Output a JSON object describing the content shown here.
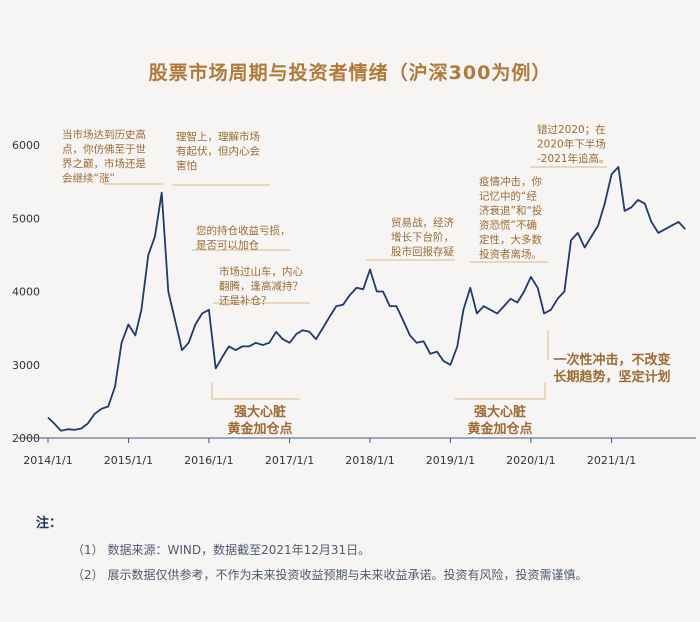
{
  "title": "股票市场周期与投资者情绪（沪深300为例）",
  "chart_data": {
    "type": "line",
    "series": [
      {
        "x": [
          "2014/1/1",
          "2014/2/1",
          "2014/3/1",
          "2014/4/1",
          "2014/5/1",
          "2014/6/1",
          "2014/7/1",
          "2014/8/1",
          "2014/9/1",
          "2014/10/1",
          "2014/11/1",
          "2014/12/1",
          "2015/1/1",
          "2015/2/1",
          "2015/3/1",
          "2015/4/1",
          "2015/5/1",
          "2015/6/1",
          "2015/7/1",
          "2015/8/1",
          "2015/9/1",
          "2015/10/1",
          "2015/11/1",
          "2015/12/1",
          "2016/1/1",
          "2016/2/1",
          "2016/3/1",
          "2016/4/1",
          "2016/5/1",
          "2016/6/1",
          "2016/7/1",
          "2016/8/1",
          "2016/9/1",
          "2016/10/1",
          "2016/11/1",
          "2016/12/1",
          "2017/1/1",
          "2017/2/1",
          "2017/3/1",
          "2017/4/1",
          "2017/5/1",
          "2017/6/1",
          "2017/7/1",
          "2017/8/1",
          "2017/9/1",
          "2017/10/1",
          "2017/11/1",
          "2017/12/1",
          "2018/1/1",
          "2018/2/1",
          "2018/3/1",
          "2018/4/1",
          "2018/5/1",
          "2018/6/1",
          "2018/7/1",
          "2018/8/1",
          "2018/9/1",
          "2018/10/1",
          "2018/11/1",
          "2018/12/1",
          "2019/1/1",
          "2019/2/1",
          "2019/3/1",
          "2019/4/1",
          "2019/5/1",
          "2019/6/1",
          "2019/7/1",
          "2019/8/1",
          "2019/9/1",
          "2019/10/1",
          "2019/11/1",
          "2019/12/1",
          "2020/1/1",
          "2020/2/1",
          "2020/3/1",
          "2020/4/1",
          "2020/5/1",
          "2020/6/1",
          "2020/7/1",
          "2020/8/1",
          "2020/9/1",
          "2020/10/1",
          "2020/11/1",
          "2020/12/1",
          "2021/1/1",
          "2021/2/1",
          "2021/3/1",
          "2021/4/1",
          "2021/5/1",
          "2021/6/1",
          "2021/7/1",
          "2021/8/1",
          "2021/9/1",
          "2021/10/1",
          "2021/11/1",
          "2021/12/1"
        ],
        "values": [
          2280,
          2190,
          2100,
          2120,
          2110,
          2130,
          2200,
          2330,
          2400,
          2430,
          2700,
          3300,
          3550,
          3400,
          3750,
          4500,
          4750,
          5350,
          4000,
          3600,
          3200,
          3300,
          3550,
          3700,
          3750,
          2950,
          3100,
          3250,
          3200,
          3250,
          3250,
          3300,
          3270,
          3300,
          3450,
          3350,
          3300,
          3420,
          3470,
          3450,
          3350,
          3500,
          3650,
          3800,
          3820,
          3950,
          4050,
          4030,
          4300,
          4000,
          4000,
          3800,
          3800,
          3600,
          3400,
          3300,
          3320,
          3150,
          3180,
          3050,
          3000,
          3250,
          3750,
          4050,
          3700,
          3800,
          3750,
          3700,
          3800,
          3900,
          3850,
          4000,
          4200,
          4050,
          3700,
          3750,
          3900,
          4000,
          4700,
          4800,
          4600,
          4750,
          4900,
          5200,
          5600,
          5700,
          5100,
          5150,
          5250,
          5200,
          4950,
          4800,
          4850,
          4900,
          4950,
          4850
        ]
      }
    ],
    "ylim": [
      2000,
      6000
    ],
    "yticks": [
      2000,
      3000,
      4000,
      5000,
      6000
    ],
    "xticks": [
      "2014/1/1",
      "2015/1/1",
      "2016/1/1",
      "2017/1/1",
      "2018/1/1",
      "2019/1/1",
      "2020/1/1",
      "2021/1/1"
    ],
    "annotations": [
      {
        "lines": [
          "当市场达到历史高",
          "点，你仿佛至于世",
          "界之巅，市场还是",
          "会继续“涨”"
        ]
      },
      {
        "lines": [
          "理智上，理解市场",
          "有起伏，但内心会",
          "害怕"
        ]
      },
      {
        "lines": [
          "您的持仓收益亏损，",
          "是否可以加仓"
        ]
      },
      {
        "lines": [
          "市场过山车，内心",
          "翻腾，逢高减持？",
          "还是补仓？"
        ]
      },
      {
        "lines": [
          "贸易战，经济",
          "增长下台阶，",
          "股市回报存疑"
        ]
      },
      {
        "lines": [
          "疫情冲击，你",
          "记忆中的“经",
          "济衰退”和“投",
          "资恐慌”不确",
          "定性，大多数",
          "投资者离场。"
        ]
      },
      {
        "lines": [
          "错过2020；在",
          "2020年下半场",
          "-2021年追高。"
        ]
      }
    ],
    "callouts": [
      {
        "lines": [
          "强大心脏",
          "黄金加仓点"
        ]
      },
      {
        "lines": [
          "强大心脏",
          "黄金加仓点"
        ]
      },
      {
        "lines": [
          "一次性冲击，不改变",
          "长期趋势，坚定计划"
        ]
      }
    ]
  },
  "notes": {
    "heading": "注：",
    "items": [
      "（1） 数据来源：WIND，数据截至2021年12月31日。",
      "（2） 展示数据仅供参考，不作为未来投资收益预期与未来收益承诺。投资有风险，投资需谨慎。"
    ]
  }
}
